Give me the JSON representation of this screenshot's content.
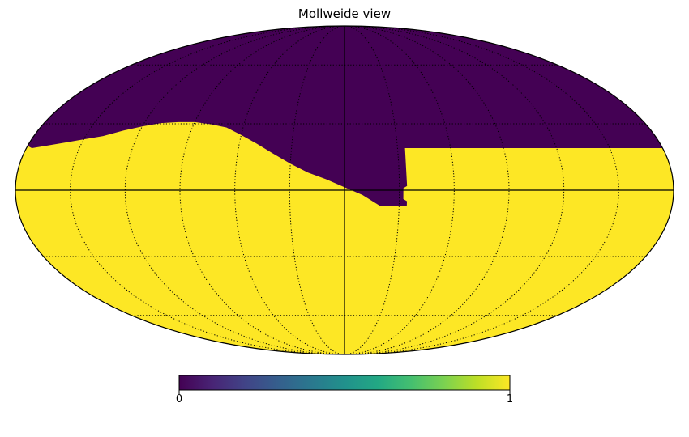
{
  "title": "Mollweide view",
  "projection": "mollweide",
  "colormap": {
    "name": "viridis",
    "stops": [
      "#440154",
      "#482475",
      "#414487",
      "#355f8d",
      "#2a788e",
      "#21918c",
      "#22a884",
      "#44bf70",
      "#7ad151",
      "#bddf26",
      "#fde725"
    ],
    "min_label": "0",
    "max_label": "1"
  },
  "colors": {
    "low": "#440154",
    "high": "#fde725",
    "outline": "#000000",
    "graticule": "#000000"
  },
  "chart_data": {
    "type": "heatmap",
    "title": "Mollweide view",
    "value_range": [
      0,
      1
    ],
    "background_value": 1,
    "graticule_step_deg": 30,
    "graticule_style": "dotted",
    "central_axes": true,
    "region_value_0_boundary": {
      "description_units": "longitude, latitude in degrees (longitude increases to the left)",
      "points": [
        [
          177,
          19
        ],
        [
          170,
          20
        ],
        [
          160,
          21.5
        ],
        [
          150,
          23
        ],
        [
          140,
          24.5
        ],
        [
          130,
          27
        ],
        [
          120,
          29
        ],
        [
          110,
          30.5
        ],
        [
          100,
          31
        ],
        [
          90,
          31
        ],
        [
          80,
          30
        ],
        [
          70,
          28.5
        ],
        [
          60,
          25
        ],
        [
          50,
          21
        ],
        [
          40,
          16.5
        ],
        [
          30,
          12
        ],
        [
          20,
          8
        ],
        [
          10,
          5
        ],
        [
          0,
          1.5
        ],
        [
          -10,
          -2
        ],
        [
          -20,
          -7
        ],
        [
          -30,
          -7
        ],
        [
          -34,
          -7
        ],
        [
          -34,
          -5
        ],
        [
          -32,
          -4
        ],
        [
          -32,
          1
        ],
        [
          -34,
          2
        ],
        [
          -34,
          19
        ],
        [
          -60,
          19
        ],
        [
          -100,
          19
        ],
        [
          -140,
          19
        ],
        [
          -180,
          19
        ]
      ]
    }
  }
}
